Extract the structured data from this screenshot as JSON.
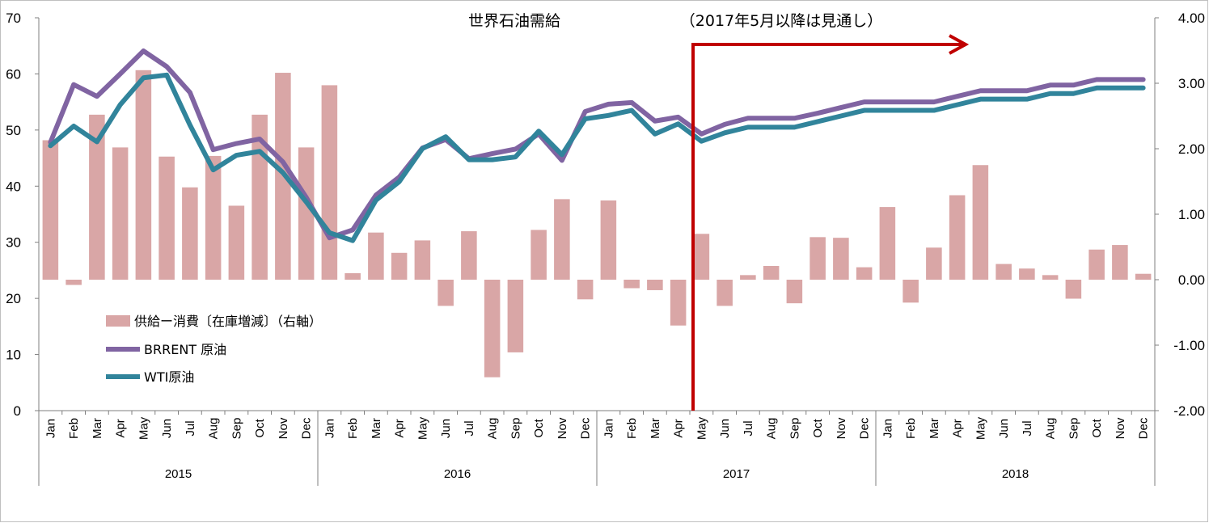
{
  "chart_data": {
    "type": "bar+line",
    "title": "世界石油需給",
    "annotation": "（2017年5月以降は見通し）",
    "years": [
      "2015",
      "2016",
      "2017",
      "2018"
    ],
    "months": [
      "Jan",
      "Feb",
      "Mar",
      "Apr",
      "May",
      "Jun",
      "Jul",
      "Aug",
      "Sep",
      "Oct",
      "Nov",
      "Dec"
    ],
    "left_axis": {
      "min": 0,
      "max": 70,
      "step": 10,
      "labels": [
        "0",
        "10",
        "20",
        "30",
        "40",
        "50",
        "60",
        "70"
      ]
    },
    "right_axis": {
      "min": -2.0,
      "max": 4.0,
      "step": 1.0,
      "labels": [
        "-2.00",
        "-1.00",
        "0.00",
        "1.00",
        "2.00",
        "3.00",
        "4.00"
      ]
    },
    "forecast_start_index": 28,
    "legend_position": "left-middle",
    "series": [
      {
        "name": "供給ー消費〔在庫増減〕（右軸）",
        "type": "bar",
        "axis": "right",
        "color": "#d9a6a6",
        "values": [
          2.13,
          -0.08,
          2.52,
          2.02,
          3.2,
          1.88,
          1.41,
          1.89,
          1.13,
          2.52,
          3.16,
          2.02,
          2.97,
          0.1,
          0.72,
          0.41,
          0.6,
          -0.4,
          0.74,
          -1.49,
          -1.11,
          0.76,
          1.23,
          -0.3,
          1.21,
          -0.13,
          -0.16,
          -0.7,
          0.7,
          -0.4,
          0.07,
          0.21,
          -0.36,
          0.65,
          0.64,
          0.19,
          1.11,
          -0.35,
          0.49,
          1.29,
          1.75,
          0.24,
          0.17,
          0.07,
          -0.29,
          0.46,
          0.53,
          0.09
        ]
      },
      {
        "name": "BRRENT 原油",
        "type": "line",
        "axis": "left",
        "color": "#8064a2",
        "values": [
          47.8,
          58.1,
          56.0,
          60.0,
          64.1,
          61.3,
          56.7,
          46.5,
          47.6,
          48.4,
          44.3,
          38.0,
          30.8,
          32.2,
          38.4,
          41.6,
          46.8,
          48.3,
          44.9,
          45.8,
          46.6,
          49.3,
          44.6,
          53.3,
          54.6,
          54.9,
          51.6,
          52.3,
          49.3,
          51.0,
          52.1,
          52.1,
          52.1,
          53.0,
          54.0,
          55.0,
          55.0,
          55.0,
          55.0,
          56.0,
          57.0,
          57.0,
          57.0,
          58.0,
          58.0,
          59.0,
          59.0,
          59.0
        ]
      },
      {
        "name": "WTI原油",
        "type": "line",
        "axis": "left",
        "color": "#31849b",
        "values": [
          47.2,
          50.7,
          47.9,
          54.5,
          59.3,
          59.8,
          50.9,
          42.9,
          45.5,
          46.2,
          42.4,
          37.2,
          31.7,
          30.3,
          37.5,
          40.8,
          46.7,
          48.8,
          44.7,
          44.7,
          45.2,
          49.8,
          45.6,
          52.0,
          52.6,
          53.5,
          49.3,
          51.1,
          48.0,
          49.5,
          50.5,
          50.5,
          50.5,
          51.5,
          52.5,
          53.5,
          53.5,
          53.5,
          53.5,
          54.5,
          55.5,
          55.5,
          55.5,
          56.5,
          56.5,
          57.5,
          57.5,
          57.5
        ]
      }
    ]
  }
}
